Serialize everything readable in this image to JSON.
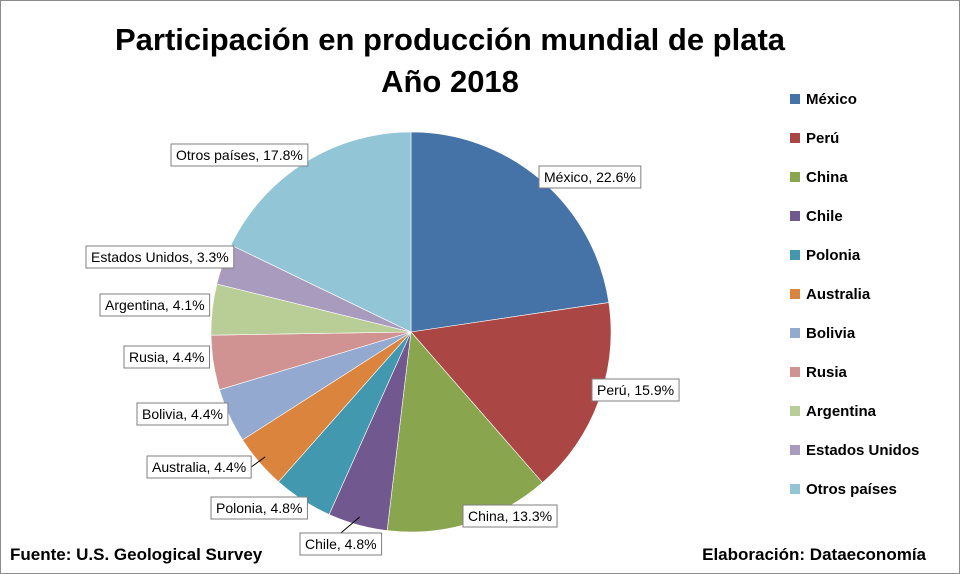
{
  "chart_data": {
    "type": "pie",
    "title": "Participación en producción mundial de plata",
    "subtitle": "Año 2018",
    "categories": [
      "México",
      "Perú",
      "China",
      "Chile",
      "Polonia",
      "Australia",
      "Bolivia",
      "Rusia",
      "Argentina",
      "Estados Unidos",
      "Otros países"
    ],
    "values": [
      22.6,
      15.9,
      13.3,
      4.8,
      4.8,
      4.4,
      4.4,
      4.4,
      4.1,
      3.3,
      17.8
    ],
    "data_labels": [
      "México, 22.6%",
      "Perú, 15.9%",
      "China, 13.3%",
      "Chile, 4.8%",
      "Polonia, 4.8%",
      "Australia, 4.4%",
      "Bolivia, 4.4%",
      "Rusia, 4.4%",
      "Argentina, 4.1%",
      "Estados Unidos, 3.3%",
      "Otros países, 17.8%"
    ],
    "colors": [
      "#4572A7",
      "#AA4643",
      "#89A54E",
      "#71588F",
      "#4198AF",
      "#DB843D",
      "#93A9CF",
      "#D19392",
      "#B9CD96",
      "#A99BBD",
      "#92C5D6"
    ],
    "legend_position": "right",
    "start_angle": "top, clockwise"
  },
  "footer": {
    "source": "Fuente: U.S. Geological Survey",
    "credit": "Elaboración: Dataeconomía"
  }
}
